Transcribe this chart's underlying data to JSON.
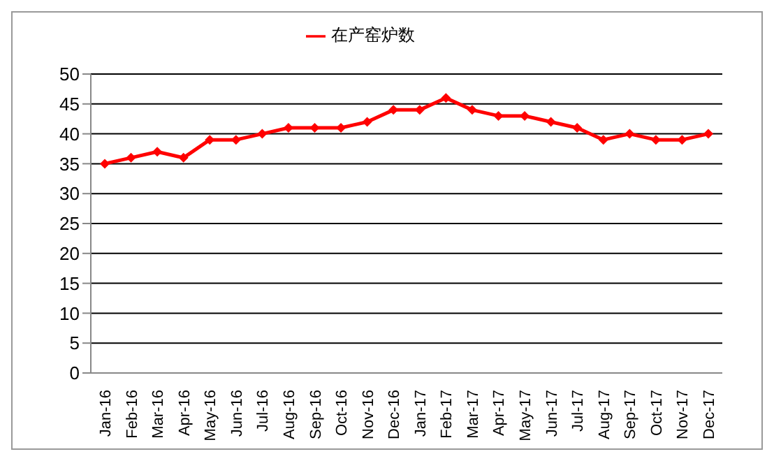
{
  "chart_data": {
    "type": "line",
    "categories": [
      "Jan-16",
      "Feb-16",
      "Mar-16",
      "Apr-16",
      "May-16",
      "Jun-16",
      "Jul-16",
      "Aug-16",
      "Sep-16",
      "Oct-16",
      "Nov-16",
      "Dec-16",
      "Jan-17",
      "Feb-17",
      "Mar-17",
      "Apr-17",
      "May-17",
      "Jun-17",
      "Jul-17",
      "Aug-17",
      "Sep-17",
      "Oct-17",
      "Nov-17",
      "Dec-17"
    ],
    "series": [
      {
        "name": "在产窑炉数",
        "color": "#ff0000",
        "values": [
          35,
          36,
          37,
          36,
          39,
          39,
          40,
          41,
          41,
          41,
          42,
          44,
          44,
          46,
          44,
          43,
          43,
          42,
          41,
          39,
          40,
          39,
          39,
          40
        ]
      }
    ],
    "ylim": [
      0,
      50
    ],
    "yticks": [
      0,
      5,
      10,
      15,
      20,
      25,
      30,
      35,
      40,
      45,
      50
    ],
    "grid": "y",
    "legend": "top",
    "marker": "diamond",
    "line_style": "solid"
  }
}
